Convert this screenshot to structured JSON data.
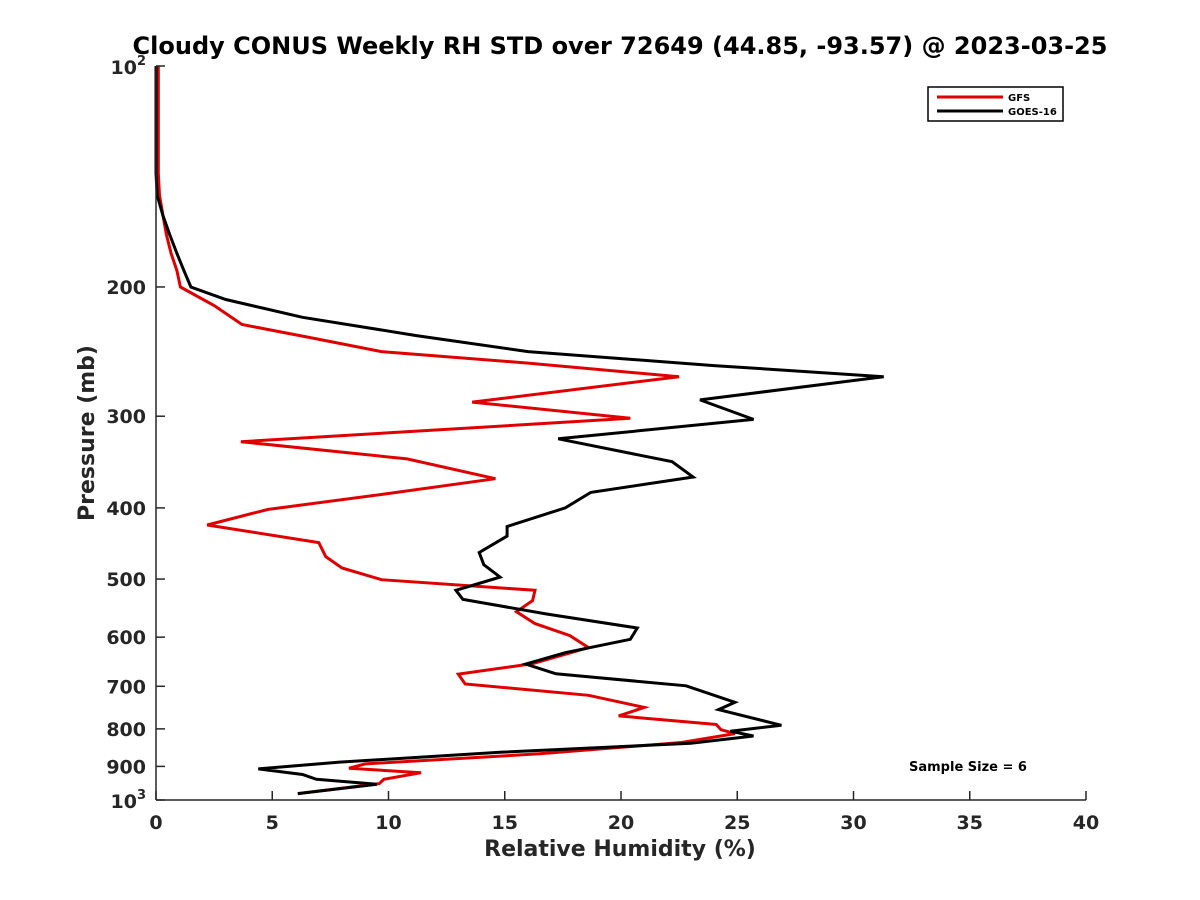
{
  "chart_data": {
    "type": "line",
    "title": "Cloudy CONUS Weekly RH STD over 72649 (44.85, -93.57) @ 2023-03-25",
    "xlabel": "Relative Humidity (%)",
    "ylabel": "Pressure (mb)",
    "xlim": [
      0,
      40
    ],
    "ylim": [
      100,
      1000
    ],
    "y_scale": "log",
    "y_reversed": true,
    "x_ticks": [
      0,
      5,
      10,
      15,
      20,
      25,
      30,
      35,
      40
    ],
    "y_ticks": [
      {
        "value": 100,
        "label": "10",
        "exp": "2"
      },
      {
        "value": 200,
        "label": "200"
      },
      {
        "value": 300,
        "label": "300"
      },
      {
        "value": 400,
        "label": "400"
      },
      {
        "value": 500,
        "label": "500"
      },
      {
        "value": 600,
        "label": "600"
      },
      {
        "value": 700,
        "label": "700"
      },
      {
        "value": 800,
        "label": "800"
      },
      {
        "value": 900,
        "label": "900"
      },
      {
        "value": 1000,
        "label": "10",
        "exp": "3"
      }
    ],
    "grid": false,
    "legend_position": "top-right",
    "annotation": "Sample Size = 6",
    "series": [
      {
        "name": "GFS",
        "color": "#e00000",
        "points": [
          [
            0.1,
            100
          ],
          [
            0.1,
            110
          ],
          [
            0.1,
            120
          ],
          [
            0.1,
            130
          ],
          [
            0.1,
            140
          ],
          [
            0.15,
            150
          ],
          [
            0.3,
            160
          ],
          [
            0.45,
            170
          ],
          [
            0.65,
            180
          ],
          [
            0.9,
            190
          ],
          [
            1.05,
            200
          ],
          [
            2.5,
            212
          ],
          [
            3.7,
            225
          ],
          [
            6.5,
            234
          ],
          [
            9.7,
            245
          ],
          [
            16.0,
            254
          ],
          [
            22.5,
            265
          ],
          [
            13.6,
            287
          ],
          [
            20.4,
            302
          ],
          [
            3.65,
            325
          ],
          [
            10.8,
            343
          ],
          [
            14.6,
            365
          ],
          [
            9.8,
            383
          ],
          [
            4.8,
            402
          ],
          [
            2.2,
            422
          ],
          [
            7.0,
            446
          ],
          [
            7.3,
            466
          ],
          [
            8.0,
            483
          ],
          [
            9.7,
            501
          ],
          [
            16.3,
            518
          ],
          [
            16.2,
            535
          ],
          [
            15.5,
            554
          ],
          [
            16.3,
            575
          ],
          [
            17.8,
            597
          ],
          [
            18.6,
            620
          ],
          [
            16.2,
            652
          ],
          [
            13.0,
            674
          ],
          [
            13.3,
            695
          ],
          [
            18.6,
            720
          ],
          [
            21.0,
            748
          ],
          [
            19.9,
            768
          ],
          [
            24.1,
            789
          ],
          [
            24.3,
            802
          ],
          [
            24.9,
            812
          ],
          [
            22.6,
            835
          ],
          [
            16.5,
            865
          ],
          [
            9.0,
            893
          ],
          [
            8.3,
            905
          ],
          [
            11.4,
            918
          ],
          [
            9.8,
            937
          ],
          [
            9.6,
            950
          ],
          [
            6.1,
            980
          ]
        ]
      },
      {
        "name": "GOES-16",
        "color": "#000000",
        "points": [
          [
            0.0,
            100
          ],
          [
            0.0,
            110
          ],
          [
            0.0,
            120
          ],
          [
            0.0,
            130
          ],
          [
            0.0,
            140
          ],
          [
            0.05,
            150
          ],
          [
            0.3,
            160
          ],
          [
            0.6,
            170
          ],
          [
            0.9,
            180
          ],
          [
            1.2,
            190
          ],
          [
            1.5,
            200
          ],
          [
            3.0,
            208
          ],
          [
            6.3,
            220
          ],
          [
            11.2,
            233
          ],
          [
            16.0,
            245
          ],
          [
            24.0,
            256
          ],
          [
            31.3,
            265
          ],
          [
            23.4,
            285
          ],
          [
            25.7,
            303
          ],
          [
            17.3,
            322
          ],
          [
            22.2,
            346
          ],
          [
            23.1,
            363
          ],
          [
            18.7,
            381
          ],
          [
            17.6,
            400
          ],
          [
            15.1,
            424
          ],
          [
            15.1,
            437
          ],
          [
            13.9,
            460
          ],
          [
            14.1,
            478
          ],
          [
            14.8,
            497
          ],
          [
            12.9,
            518
          ],
          [
            13.2,
            533
          ],
          [
            16.8,
            558
          ],
          [
            20.7,
            583
          ],
          [
            20.4,
            604
          ],
          [
            17.6,
            630
          ],
          [
            15.9,
            653
          ],
          [
            17.2,
            673
          ],
          [
            22.8,
            699
          ],
          [
            24.9,
            736
          ],
          [
            24.2,
            753
          ],
          [
            26.9,
            791
          ],
          [
            24.7,
            806
          ],
          [
            25.7,
            818
          ],
          [
            23.0,
            837
          ],
          [
            14.8,
            861
          ],
          [
            7.9,
            888
          ],
          [
            4.4,
            907
          ],
          [
            6.3,
            923
          ],
          [
            6.9,
            937
          ],
          [
            9.5,
            952
          ],
          [
            6.1,
            980
          ]
        ]
      }
    ]
  }
}
